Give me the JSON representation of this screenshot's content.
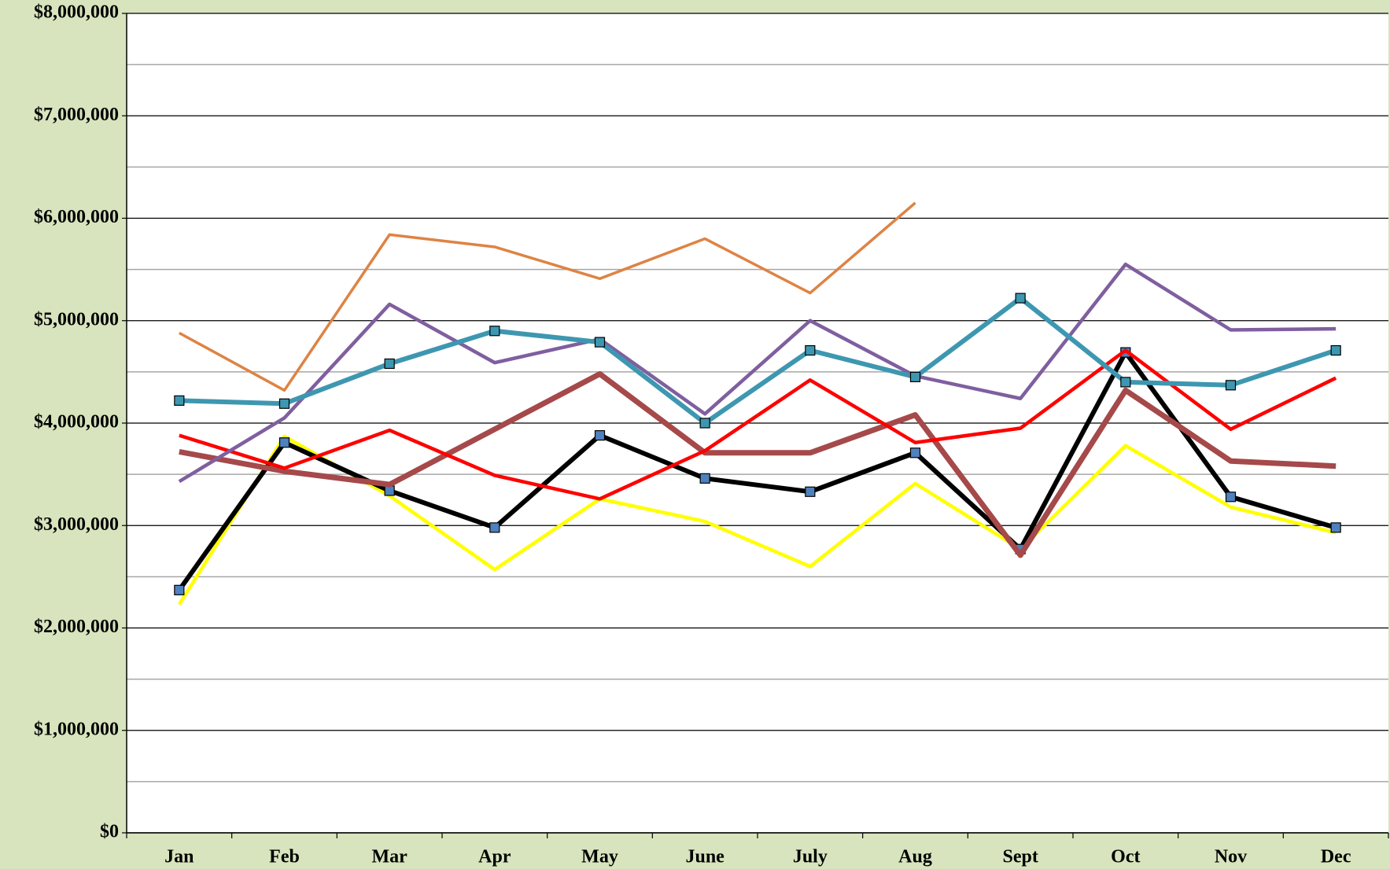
{
  "chart_data": {
    "type": "line",
    "categories": [
      "Jan",
      "Feb",
      "Mar",
      "Apr",
      "May",
      "June",
      "July",
      "Aug",
      "Sept",
      "Oct",
      "Nov",
      "Dec"
    ],
    "ylim": [
      0,
      8000000
    ],
    "yticks": [
      {
        "value": 0,
        "label": "$0"
      },
      {
        "value": 1000000,
        "label": "$1,000,000"
      },
      {
        "value": 2000000,
        "label": "$2,000,000"
      },
      {
        "value": 3000000,
        "label": "$3,000,000"
      },
      {
        "value": 4000000,
        "label": "$4,000,000"
      },
      {
        "value": 5000000,
        "label": "$5,000,000"
      },
      {
        "value": 6000000,
        "label": "$6,000,000"
      },
      {
        "value": 7000000,
        "label": "$7,000,000"
      },
      {
        "value": 8000000,
        "label": "$8,000,000"
      }
    ],
    "grid": true,
    "series": [
      {
        "color": "#ffff00",
        "values": [
          2230000,
          3870000,
          3290000,
          2570000,
          3260000,
          3040000,
          2600000,
          3410000,
          2770000,
          3780000,
          3180000,
          2930000
        ]
      },
      {
        "color": "#000000",
        "marker": "square",
        "marker_color": "#4f81bd",
        "values": [
          2370000,
          3810000,
          3340000,
          2980000,
          3880000,
          3460000,
          3330000,
          3710000,
          2770000,
          4690000,
          3280000,
          2980000
        ]
      },
      {
        "color": "#a5494a",
        "values": [
          3720000,
          3530000,
          3400000,
          3940000,
          4480000,
          3710000,
          3710000,
          4080000,
          2710000,
          4320000,
          3630000,
          3580000
        ]
      },
      {
        "color": "#ff0000",
        "values": [
          3880000,
          3560000,
          3930000,
          3490000,
          3260000,
          3730000,
          4420000,
          3810000,
          3950000,
          4710000,
          3940000,
          4440000
        ]
      },
      {
        "color": "#7f5f9f",
        "values": [
          3430000,
          4050000,
          5160000,
          4590000,
          4820000,
          4090000,
          5000000,
          4460000,
          4240000,
          5550000,
          4910000,
          4920000
        ]
      },
      {
        "color": "#3e97b0",
        "marker": "square",
        "marker_color": "#3e97b0",
        "values": [
          4220000,
          4190000,
          4580000,
          4900000,
          4790000,
          4000000,
          4710000,
          4450000,
          5220000,
          4400000,
          4370000,
          4710000
        ]
      },
      {
        "color": "#de8344",
        "values": [
          4880000,
          4320000,
          5840000,
          5720000,
          5410000,
          5800000,
          5270000,
          6150000,
          null,
          null,
          null,
          null
        ]
      }
    ]
  }
}
